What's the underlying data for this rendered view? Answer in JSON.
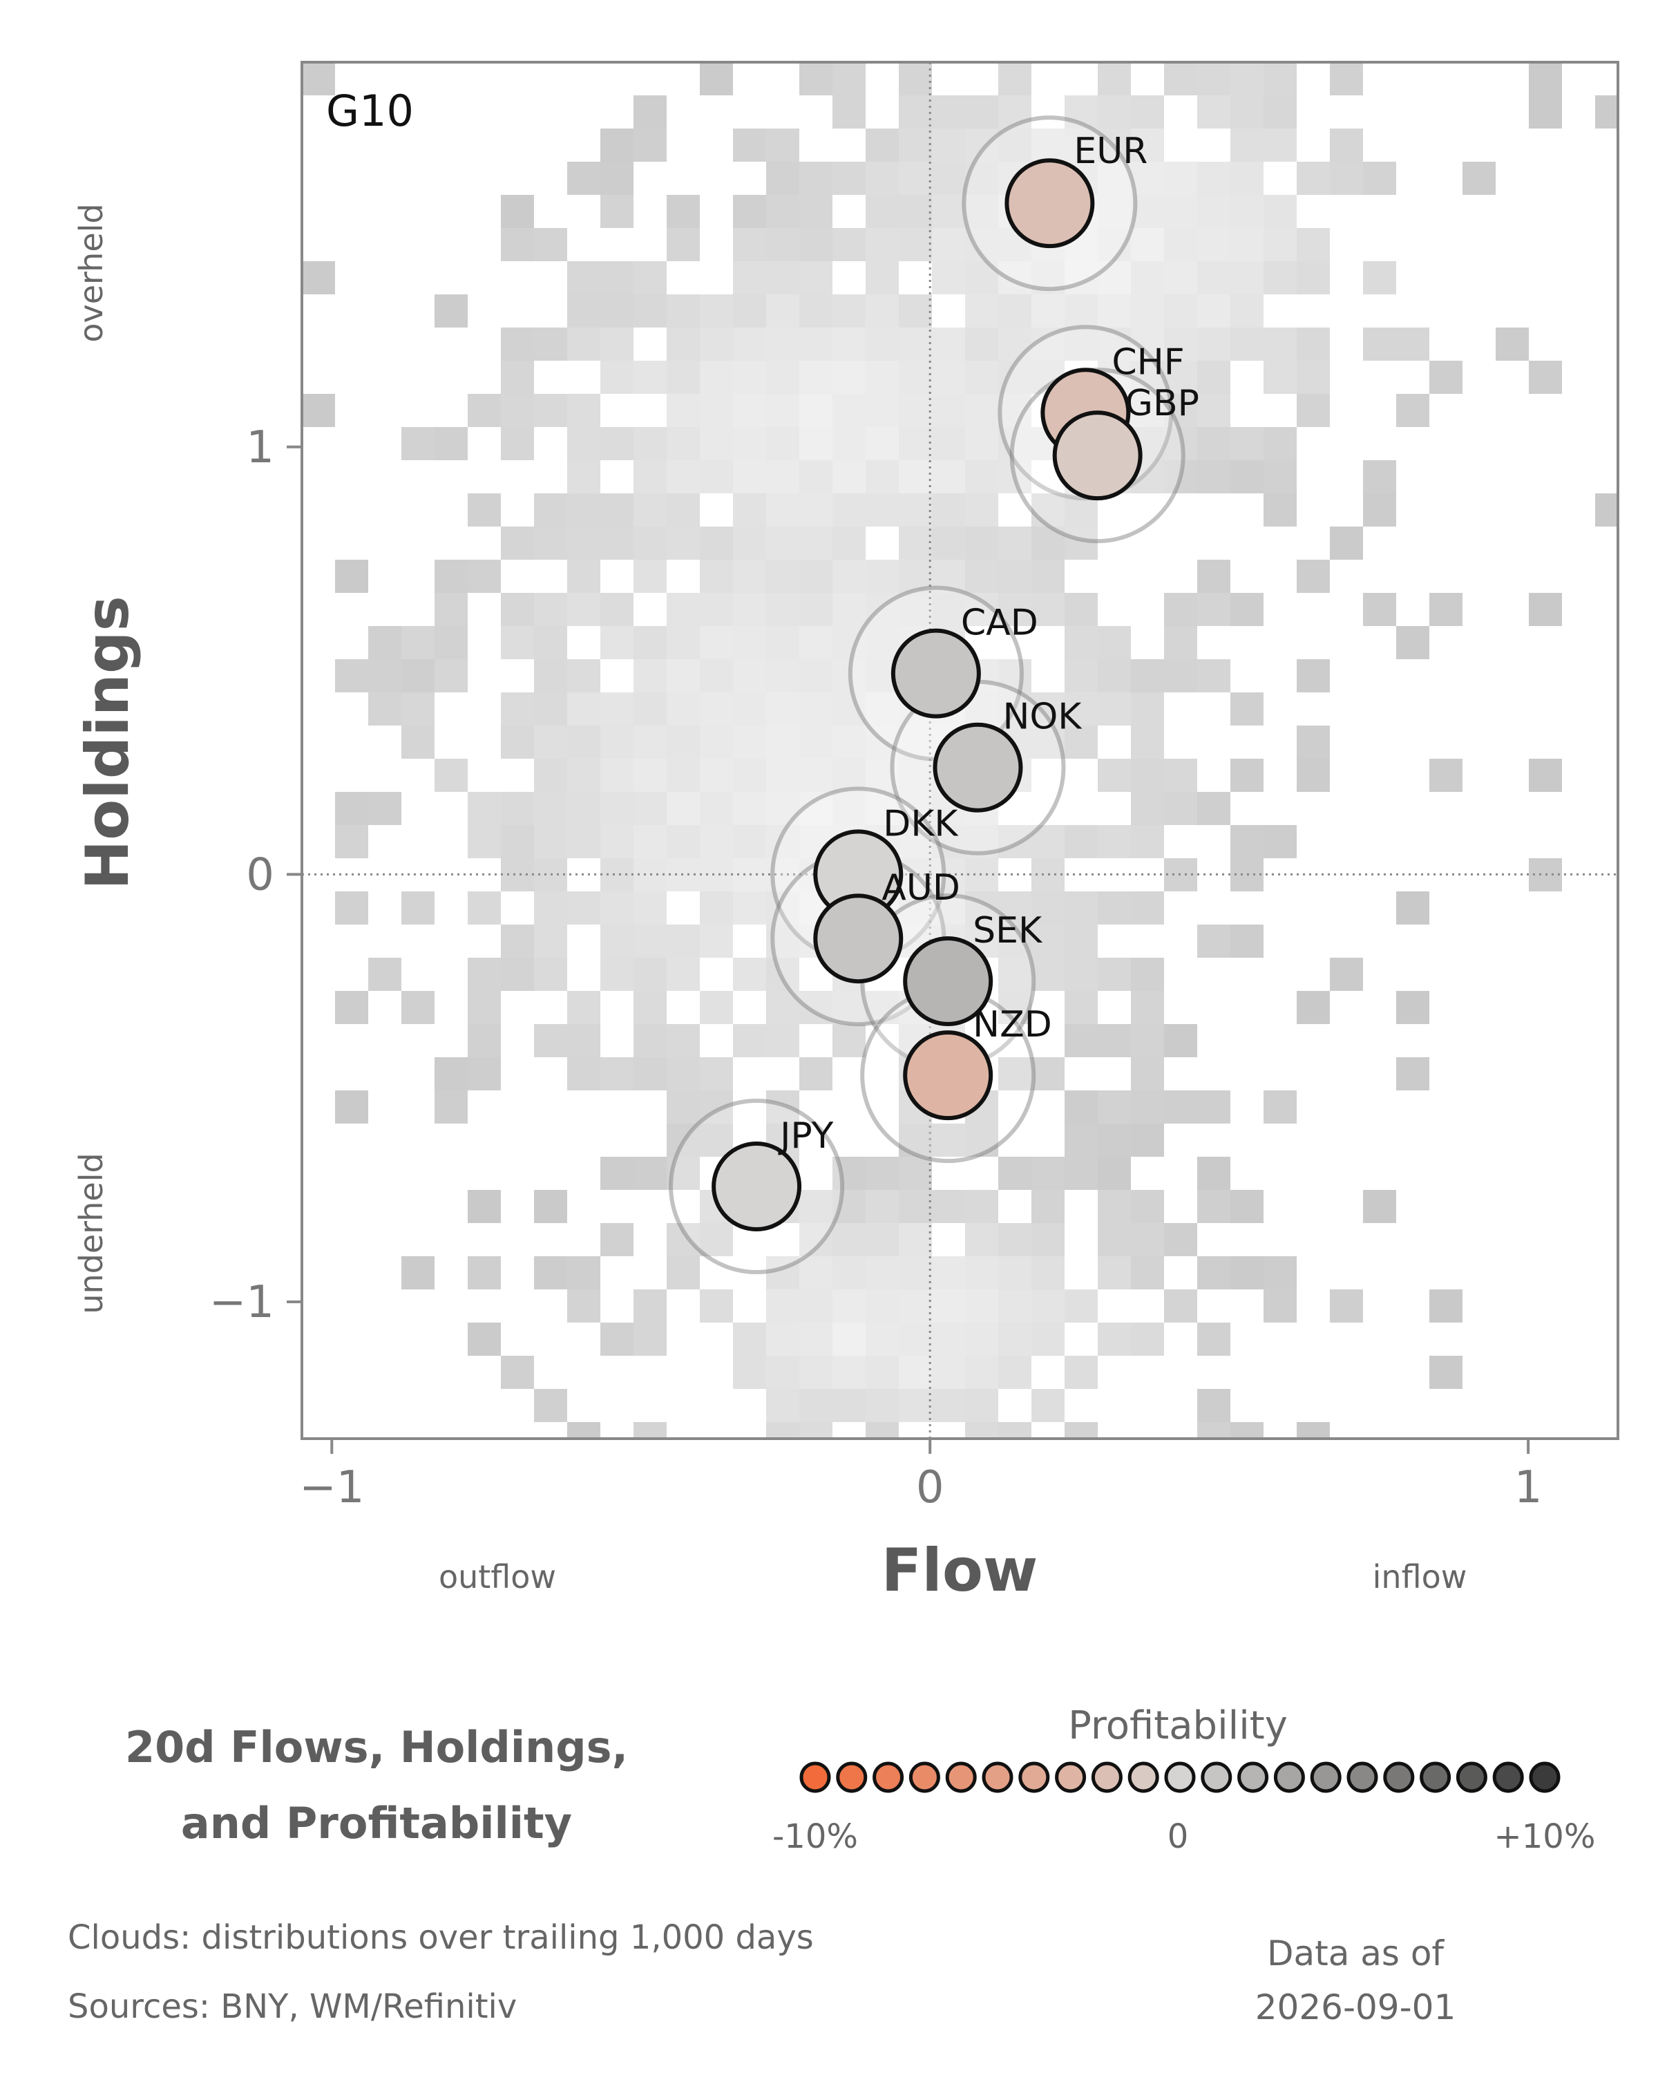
{
  "chart_data": {
    "type": "scatter",
    "region_label": "G10",
    "xlabel": "Flow",
    "ylabel": "Holdings",
    "x_direction_labels": {
      "low": "outflow",
      "high": "inflow"
    },
    "y_direction_labels": {
      "low": "underheld",
      "high": "overheld"
    },
    "xlim": [
      -1.05,
      1.15
    ],
    "ylim": [
      -1.32,
      1.9
    ],
    "xticks": [
      {
        "value": -1,
        "label": "−1"
      },
      {
        "value": 0,
        "label": "0"
      },
      {
        "value": 1,
        "label": "1"
      }
    ],
    "yticks": [
      {
        "value": -1,
        "label": "−1"
      },
      {
        "value": 0,
        "label": "0"
      },
      {
        "value": 1,
        "label": "1"
      }
    ],
    "points": [
      {
        "label": "EUR",
        "x": 0.2,
        "y": 1.57,
        "profitability": -0.02
      },
      {
        "label": "CHF",
        "x": 0.26,
        "y": 1.08,
        "profitability": -0.02
      },
      {
        "label": "GBP",
        "x": 0.28,
        "y": 0.98,
        "profitability": -0.01
      },
      {
        "label": "CAD",
        "x": 0.01,
        "y": 0.47,
        "profitability": 0.01
      },
      {
        "label": "NOK",
        "x": 0.08,
        "y": 0.25,
        "profitability": 0.01
      },
      {
        "label": "DKK",
        "x": -0.12,
        "y": 0.0,
        "profitability": 0.0
      },
      {
        "label": "AUD",
        "x": -0.12,
        "y": -0.15,
        "profitability": 0.01
      },
      {
        "label": "SEK",
        "x": 0.03,
        "y": -0.25,
        "profitability": 0.02
      },
      {
        "label": "NZD",
        "x": 0.03,
        "y": -0.47,
        "profitability": -0.03
      },
      {
        "label": "JPY",
        "x": -0.29,
        "y": -0.73,
        "profitability": 0.0
      }
    ],
    "legend": {
      "title": "Profitability",
      "min_label": "-10%",
      "mid_label": "0",
      "max_label": "+10%",
      "range": [
        -0.1,
        0.1
      ],
      "colors": {
        "negative": "#f26b3a",
        "neutral": "#d6d4d2",
        "positive": "#3b3b3b"
      }
    },
    "background": {
      "description_type": "heatmap",
      "colors": {
        "low": "#c9c9c9",
        "high": "#f4f4f4"
      }
    },
    "grid": false
  },
  "footer": {
    "title_line1": "20d Flows, Holdings,",
    "title_line2": "and Profitability",
    "clouds_note": "Clouds:  distributions over trailing 1,000 days",
    "sources_note": "Sources:  BNY, WM/Refinitiv",
    "date_line1": "Data as of",
    "date_line2": "2026-09-01"
  }
}
